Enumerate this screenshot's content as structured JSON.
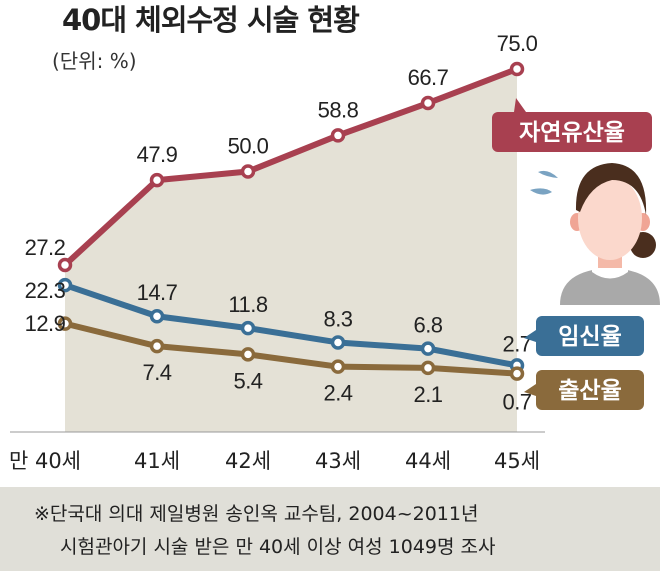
{
  "chart_data": {
    "type": "line",
    "title": "40대 체외수정 시술 현황",
    "unit": "(단위: %)",
    "categories": [
      "만 40세",
      "41세",
      "42세",
      "43세",
      "44세",
      "45세"
    ],
    "series": [
      {
        "name": "자연유산율",
        "color": "#a84050",
        "values": [
          27.2,
          47.9,
          50.0,
          58.8,
          66.7,
          75.0
        ]
      },
      {
        "name": "임신율",
        "color": "#3a6f96",
        "values": [
          22.3,
          14.7,
          11.8,
          8.3,
          6.8,
          2.7
        ]
      },
      {
        "name": "출산율",
        "color": "#8a6a3c",
        "values": [
          12.9,
          7.4,
          5.4,
          2.4,
          2.1,
          0.7
        ]
      }
    ],
    "ylim": [
      0,
      80
    ],
    "grid": false,
    "area_fill": "#e4e1d6"
  },
  "footnote": {
    "line1": "※단국대 의대 제일병원 송인옥 교수팀, 2004~2011년",
    "line2": "시험관아기 시술 받은 만 40세 이상 여성 1049명 조사"
  }
}
